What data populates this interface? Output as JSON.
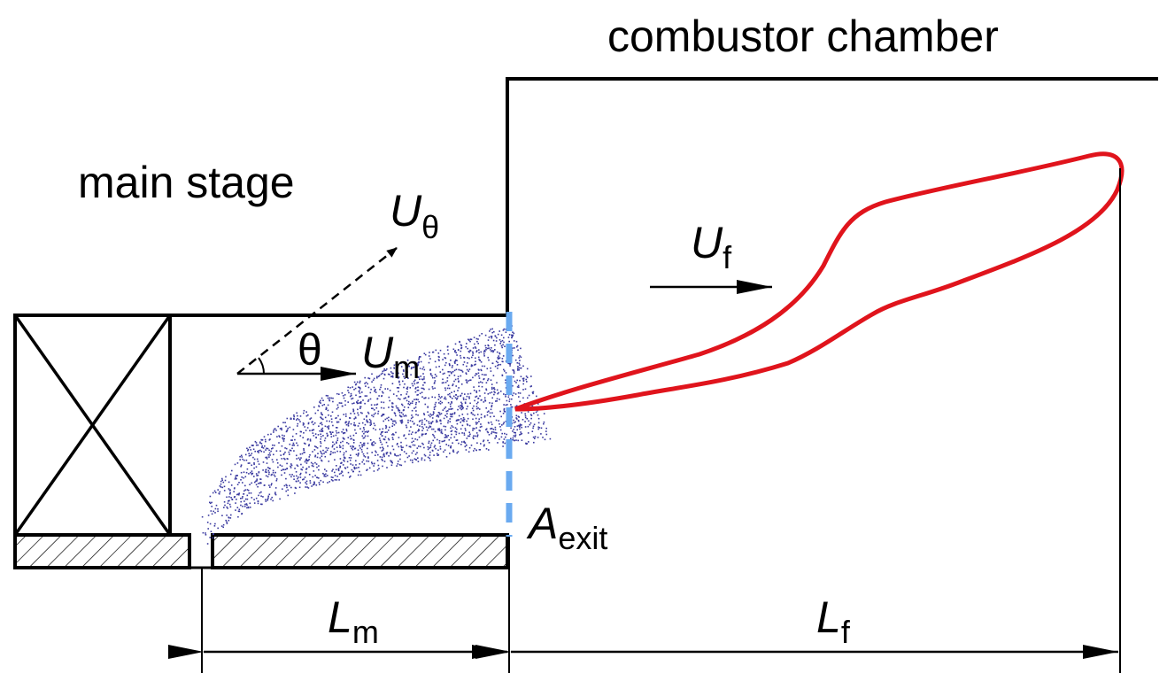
{
  "labels": {
    "combustor_chamber": "combustor chamber",
    "main_stage": "main stage",
    "theta": "θ"
  },
  "symbols": {
    "u_theta": {
      "main": "U",
      "sub": "θ"
    },
    "u_m": {
      "main": "U",
      "sub": "m"
    },
    "u_f": {
      "main": "U",
      "sub": "f"
    },
    "a_exit": {
      "main": "A",
      "sub": "exit"
    },
    "l_m": {
      "main": "L",
      "sub": "m"
    },
    "l_f": {
      "main": "L",
      "sub": "f"
    }
  },
  "colors": {
    "line": "#000000",
    "flame": "#e0141c",
    "exit_plane": "#6aaaf0",
    "spray": "#3a3aa0"
  }
}
